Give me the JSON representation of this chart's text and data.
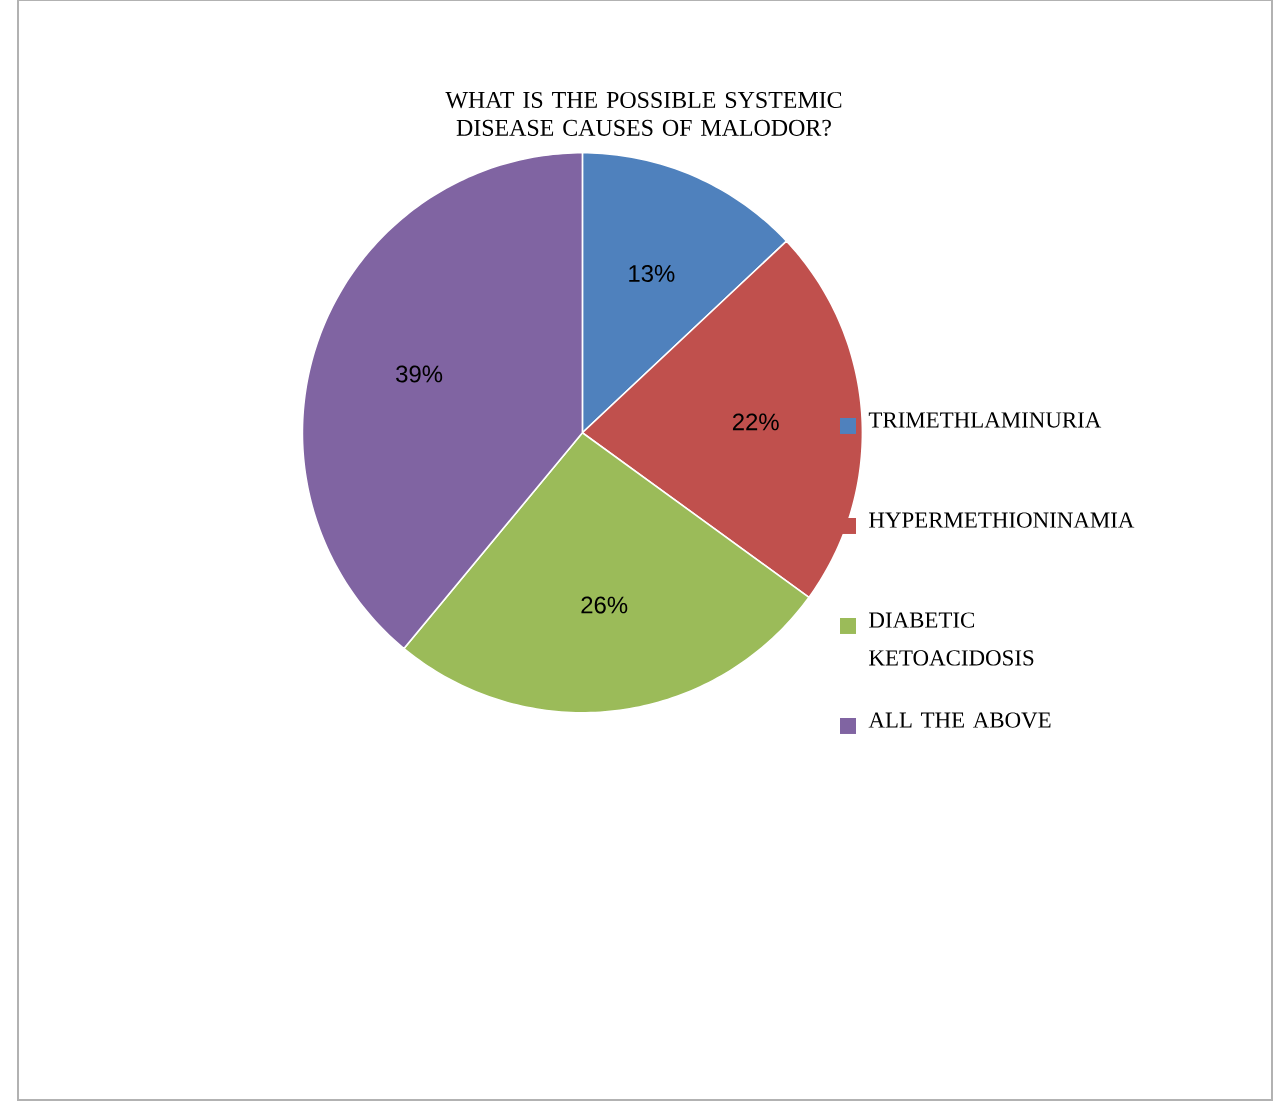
{
  "chart_data": {
    "type": "pie",
    "title": "WHAT IS THE POSSIBLE SYSTEMIC DISEASE CAUSES OF MALODOR?",
    "categories": [
      "TRIMETHLAMINURIA",
      "HYPERMETHIONINAMIA",
      "DIABETIC KETOACIDOSIS",
      "ALL THE ABOVE"
    ],
    "values": [
      13,
      22,
      26,
      39
    ],
    "value_labels": [
      "13%",
      "22%",
      "26%",
      "39%"
    ],
    "colors": [
      "#4f81bd",
      "#c0504d",
      "#9bbb59",
      "#8064a2"
    ],
    "legend": "right"
  }
}
